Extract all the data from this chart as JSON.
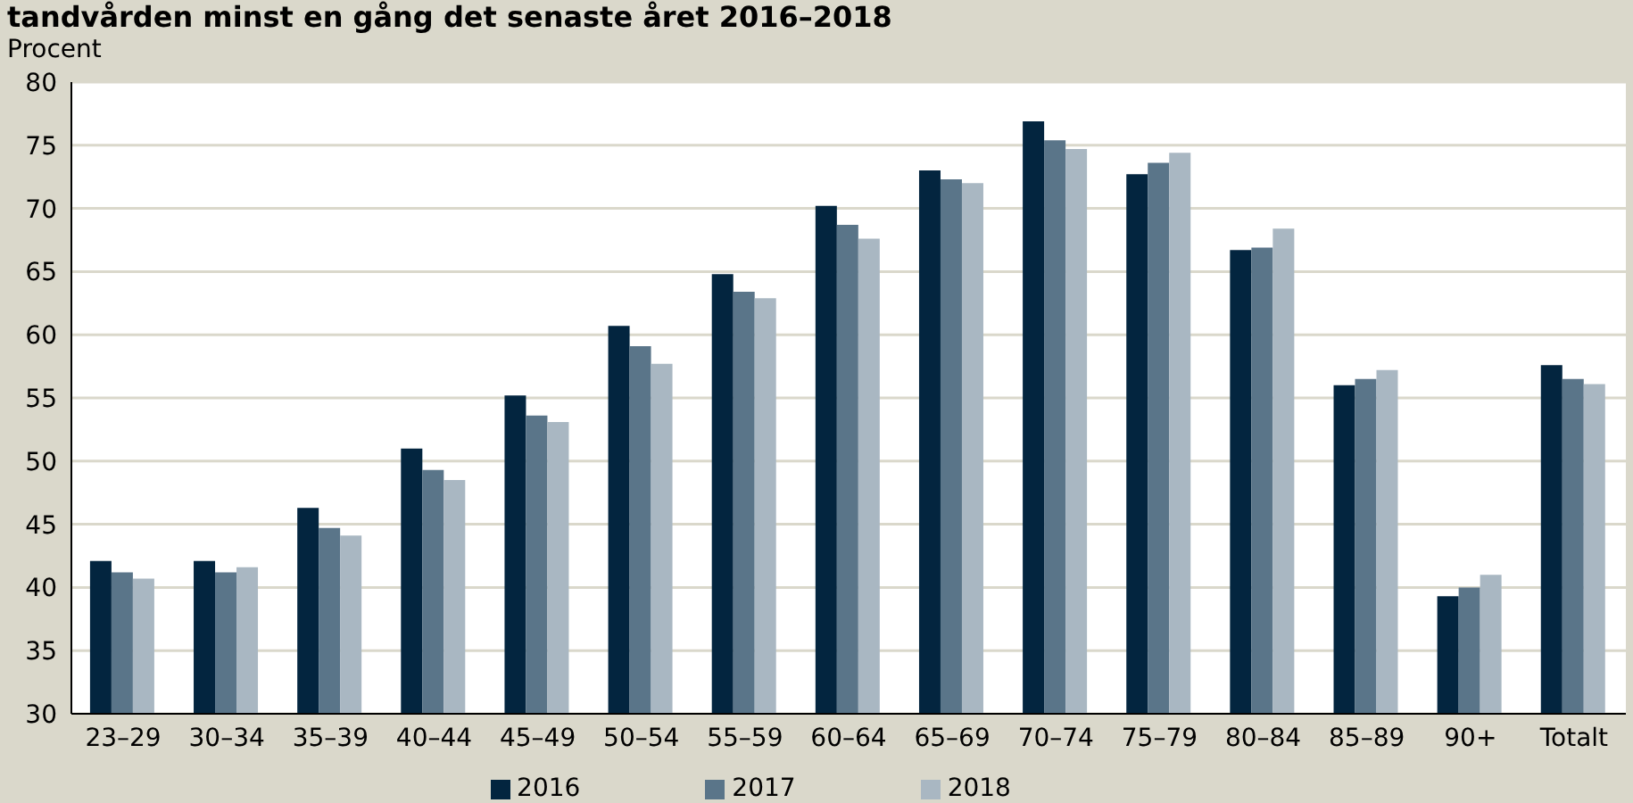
{
  "chart_data": {
    "type": "bar",
    "title": "tandvården minst en gång det senaste året 2016–2018",
    "ylabel": "Procent",
    "categories": [
      "23–29",
      "30–34",
      "35–39",
      "40–44",
      "45–49",
      "50–54",
      "55–59",
      "60–64",
      "65–69",
      "70–74",
      "75–79",
      "80–84",
      "85–89",
      "90+",
      "Totalt"
    ],
    "series": [
      {
        "name": "2016",
        "color": "#03253f",
        "values": [
          42.1,
          42.1,
          46.3,
          51.0,
          55.2,
          60.7,
          64.8,
          70.2,
          73.0,
          76.9,
          72.7,
          66.7,
          56.0,
          39.3,
          57.6
        ]
      },
      {
        "name": "2017",
        "color": "#5a7589",
        "values": [
          41.2,
          41.2,
          44.7,
          49.3,
          53.6,
          59.1,
          63.4,
          68.7,
          72.3,
          75.4,
          73.6,
          66.9,
          56.5,
          40.0,
          56.5
        ]
      },
      {
        "name": "2018",
        "color": "#a9b7c2",
        "values": [
          40.7,
          41.6,
          44.1,
          48.5,
          53.1,
          57.7,
          62.9,
          67.6,
          72.0,
          74.7,
          74.4,
          68.4,
          57.2,
          41.0,
          56.1
        ]
      }
    ],
    "ylim": [
      30,
      80
    ],
    "yticks": [
      30,
      35,
      40,
      45,
      50,
      55,
      60,
      65,
      70,
      75,
      80
    ],
    "grid": "y",
    "legend": "bottom"
  }
}
